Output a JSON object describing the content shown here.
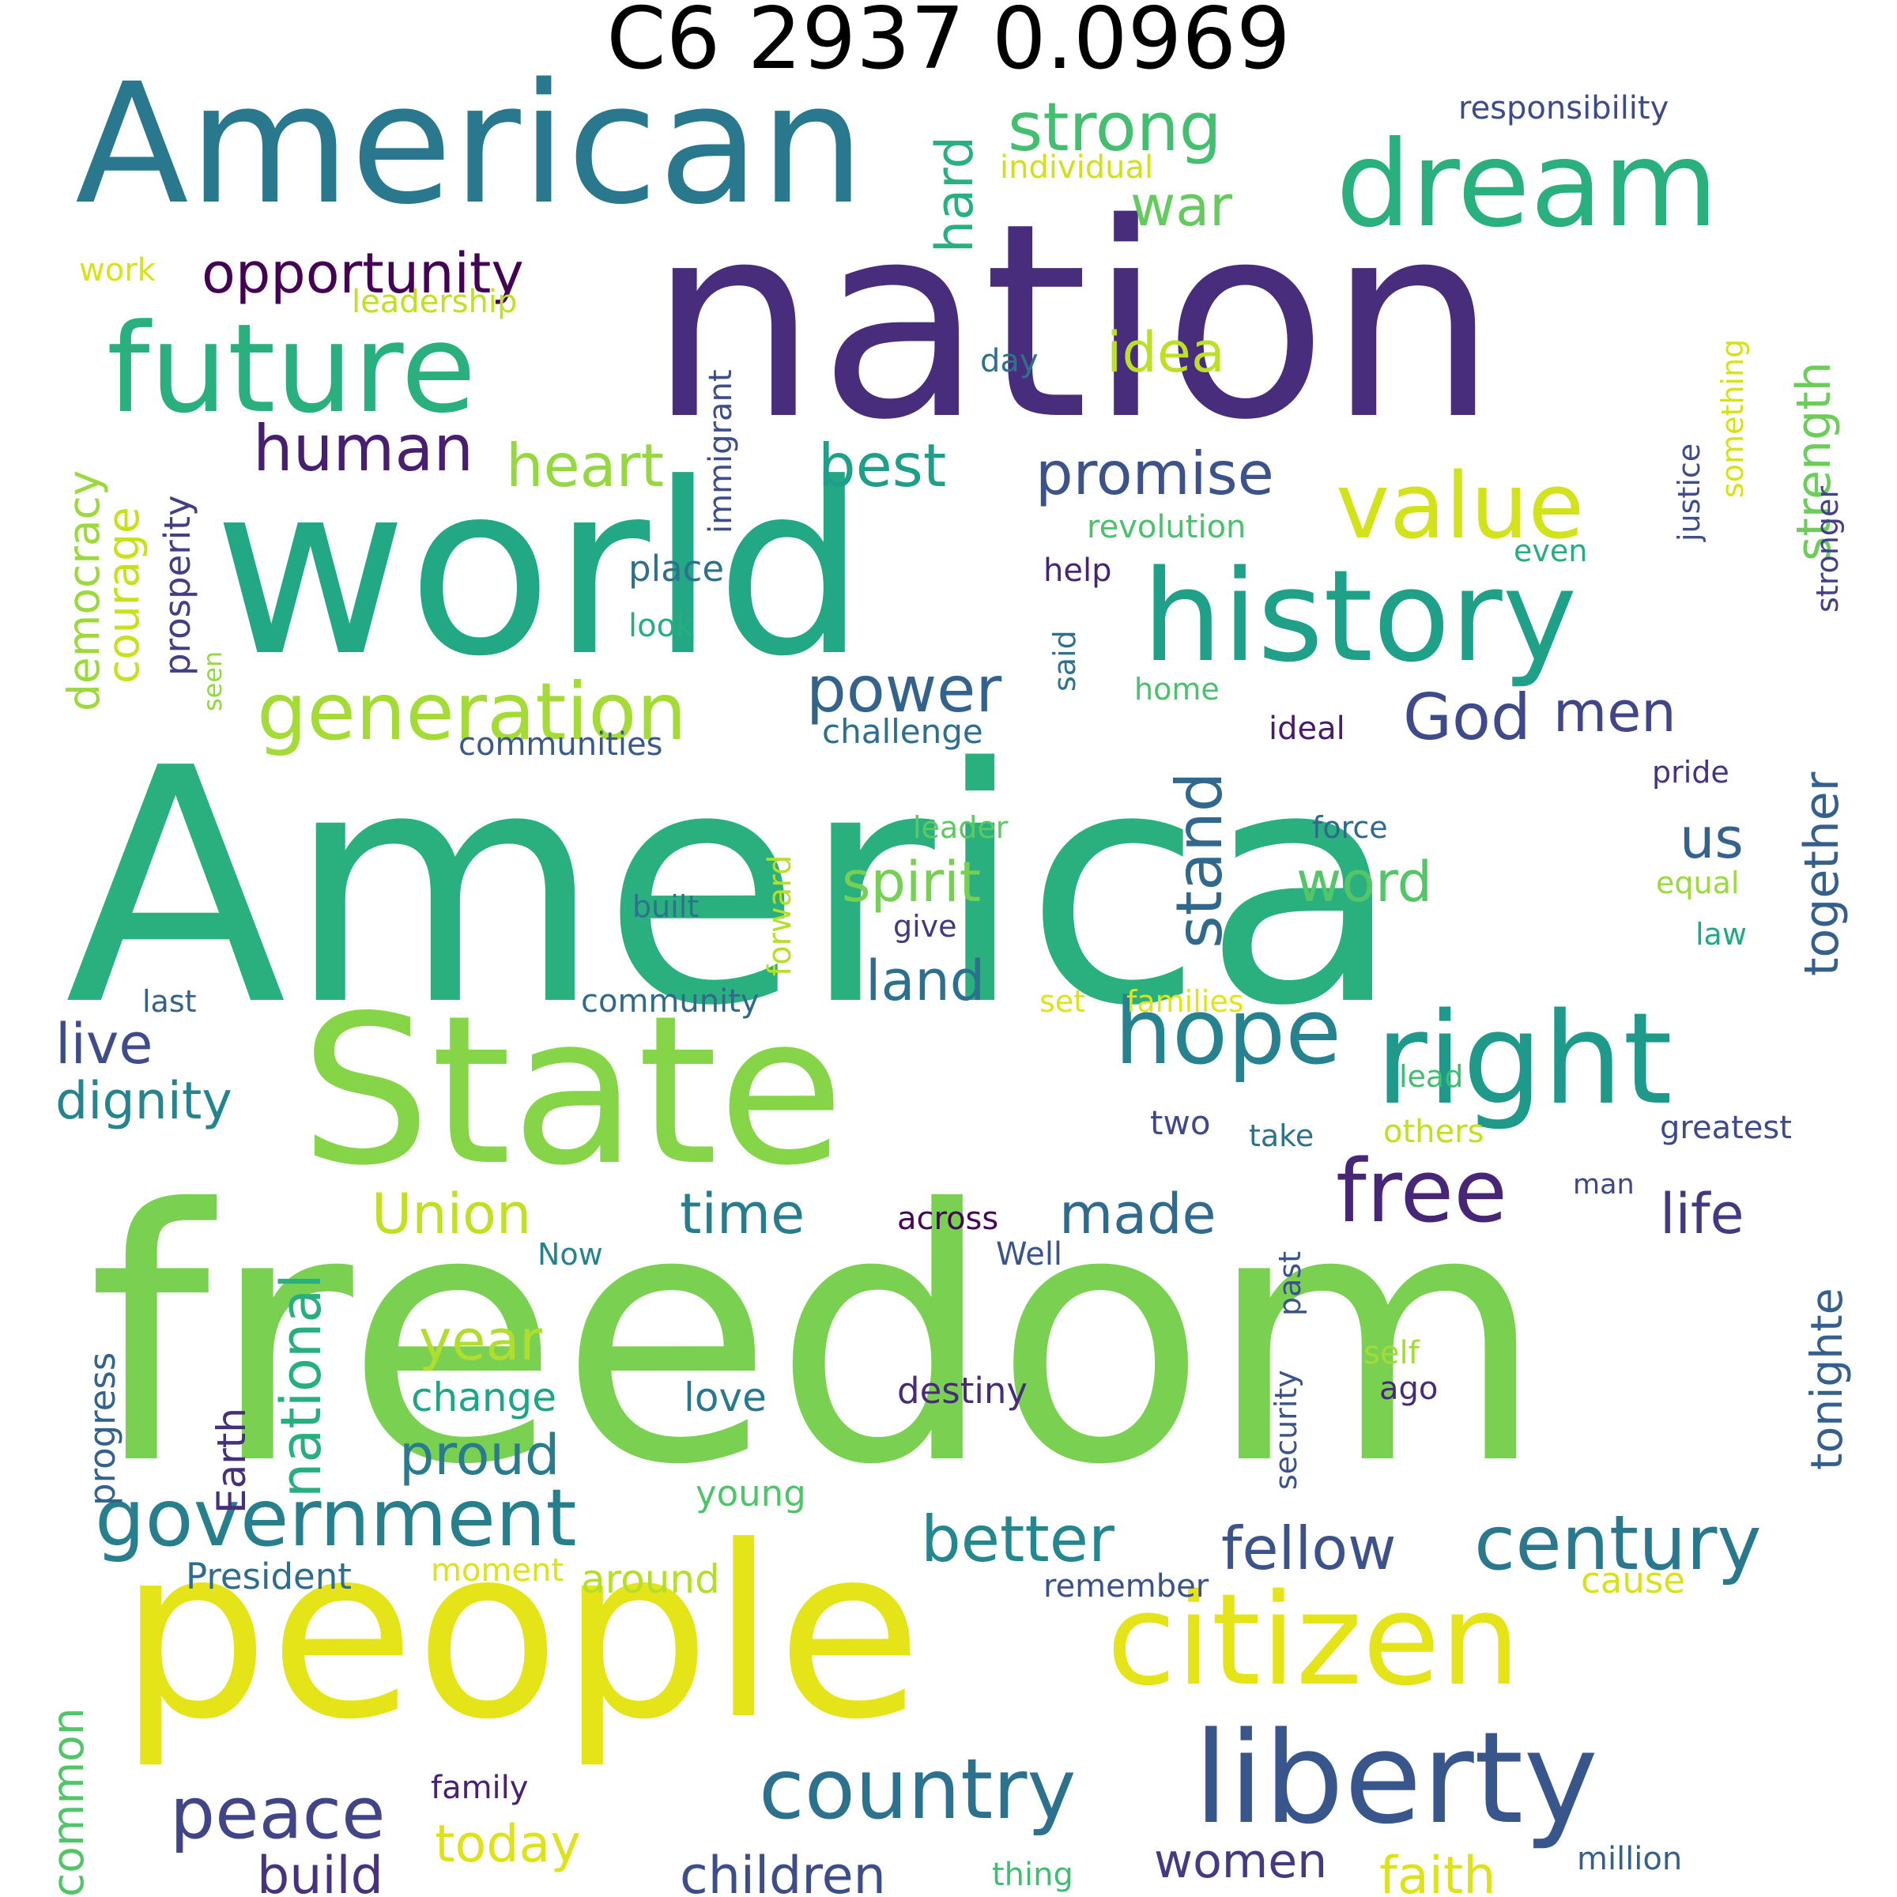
{
  "title": "C6 2937 0.0969",
  "words": [
    {
      "text": "freedom",
      "color": "#7ad151"
    },
    {
      "text": "America",
      "color": "#2ab07f"
    },
    {
      "text": "people",
      "color": "#e5e419"
    },
    {
      "text": "nation",
      "color": "#472d7b"
    },
    {
      "text": "world",
      "color": "#22a884"
    },
    {
      "text": "State",
      "color": "#86d549"
    },
    {
      "text": "American",
      "color": "#2a788e"
    },
    {
      "text": "history",
      "color": "#1fa088"
    },
    {
      "text": "dream",
      "color": "#2ab07f"
    },
    {
      "text": "future",
      "color": "#2ab07f"
    },
    {
      "text": "right",
      "color": "#1f9a8a"
    },
    {
      "text": "liberty",
      "color": "#39568c"
    },
    {
      "text": "citizen",
      "color": "#e5e419"
    },
    {
      "text": "value",
      "color": "#d2e21b"
    },
    {
      "text": "hope",
      "color": "#26828e"
    },
    {
      "text": "generation",
      "color": "#a5db36"
    },
    {
      "text": "government",
      "color": "#277f8e"
    },
    {
      "text": "country",
      "color": "#2c728e"
    },
    {
      "text": "century",
      "color": "#2a788e"
    },
    {
      "text": "free",
      "color": "#482677"
    },
    {
      "text": "strong",
      "color": "#44bf70"
    },
    {
      "text": "opportunity",
      "color": "#440154"
    },
    {
      "text": "human",
      "color": "#481f70"
    },
    {
      "text": "heart",
      "color": "#95d840"
    },
    {
      "text": "promise",
      "color": "#3b528b"
    },
    {
      "text": "best",
      "color": "#1f9e89"
    },
    {
      "text": "power",
      "color": "#33638d"
    },
    {
      "text": "spirit",
      "color": "#75d054"
    },
    {
      "text": "stand",
      "color": "#31688e"
    },
    {
      "text": "God",
      "color": "#3e4a89"
    },
    {
      "text": "men",
      "color": "#404688"
    },
    {
      "text": "word",
      "color": "#54c568"
    },
    {
      "text": "land",
      "color": "#2d708e"
    },
    {
      "text": "us",
      "color": "#34618d"
    },
    {
      "text": "together",
      "color": "#355f8d"
    },
    {
      "text": "idea",
      "color": "#bddf26"
    },
    {
      "text": "war",
      "color": "#65cb5e"
    },
    {
      "text": "hard",
      "color": "#2ab07f"
    },
    {
      "text": "strength",
      "color": "#6ccd5a"
    },
    {
      "text": "live",
      "color": "#3e4c8a"
    },
    {
      "text": "dignity",
      "color": "#25858e"
    },
    {
      "text": "Union",
      "color": "#c2df23"
    },
    {
      "text": "time",
      "color": "#287c8e"
    },
    {
      "text": "made",
      "color": "#2f6b8e"
    },
    {
      "text": "life",
      "color": "#453781"
    },
    {
      "text": "year",
      "color": "#b0dd2f"
    },
    {
      "text": "proud",
      "color": "#297b8e"
    },
    {
      "text": "national",
      "color": "#29af7f"
    },
    {
      "text": "better",
      "color": "#24868e"
    },
    {
      "text": "fellow",
      "color": "#3b528b"
    },
    {
      "text": "peace",
      "color": "#414487"
    },
    {
      "text": "build",
      "color": "#46327e"
    },
    {
      "text": "today",
      "color": "#dde318"
    },
    {
      "text": "children",
      "color": "#3d4d8a"
    },
    {
      "text": "women",
      "color": "#443983"
    },
    {
      "text": "faith",
      "color": "#dde318"
    },
    {
      "text": "common",
      "color": "#52c569"
    },
    {
      "text": "democracy",
      "color": "#9bd93c"
    },
    {
      "text": "courage",
      "color": "#c8e020"
    },
    {
      "text": "prosperity",
      "color": "#433e85"
    },
    {
      "text": "immigrant",
      "color": "#3d4e8a"
    },
    {
      "text": "tonight",
      "color": "#35b779"
    },
    {
      "text": "tonighte",
      "color": "#35608d"
    },
    {
      "text": "progress",
      "color": "#33638d"
    },
    {
      "text": "Earth",
      "color": "#46307e"
    },
    {
      "text": "change",
      "color": "#20a486"
    },
    {
      "text": "love",
      "color": "#2a788e"
    },
    {
      "text": "destiny",
      "color": "#472c7a"
    },
    {
      "text": "young",
      "color": "#50c46a"
    },
    {
      "text": "President",
      "color": "#2e6d8e"
    },
    {
      "text": "moment",
      "color": "#dde318"
    },
    {
      "text": "around",
      "color": "#b5de2b"
    },
    {
      "text": "remember",
      "color": "#3b528b"
    },
    {
      "text": "cause",
      "color": "#d8e219"
    },
    {
      "text": "family",
      "color": "#482173"
    },
    {
      "text": "thing",
      "color": "#40bd72"
    },
    {
      "text": "million",
      "color": "#355f8d"
    },
    {
      "text": "responsibility",
      "color": "#3e4a89"
    },
    {
      "text": "individual",
      "color": "#d0e11c"
    },
    {
      "text": "work",
      "color": "#d8e219"
    },
    {
      "text": "leadership",
      "color": "#c0df25"
    },
    {
      "text": "day",
      "color": "#2d718e"
    },
    {
      "text": "something",
      "color": "#d5e21a"
    },
    {
      "text": "justice",
      "color": "#3d4e8a"
    },
    {
      "text": "stronger",
      "color": "#424086"
    },
    {
      "text": "revolution",
      "color": "#4ac16d"
    },
    {
      "text": "even",
      "color": "#27ad81"
    },
    {
      "text": "help",
      "color": "#482475"
    },
    {
      "text": "place",
      "color": "#2d718e"
    },
    {
      "text": "look",
      "color": "#27ad81"
    },
    {
      "text": "said",
      "color": "#2c728e"
    },
    {
      "text": "seen",
      "color": "#93d741"
    },
    {
      "text": "home",
      "color": "#4ac16d"
    },
    {
      "text": "communities",
      "color": "#38598c"
    },
    {
      "text": "challenge",
      "color": "#2e6e8e"
    },
    {
      "text": "ideal",
      "color": "#481b6d"
    },
    {
      "text": "pride",
      "color": "#463480"
    },
    {
      "text": "leader",
      "color": "#5ec962"
    },
    {
      "text": "force",
      "color": "#31688e"
    },
    {
      "text": "equal",
      "color": "#9bd93c"
    },
    {
      "text": "forward",
      "color": "#b8de29"
    },
    {
      "text": "built",
      "color": "#2c738e"
    },
    {
      "text": "give",
      "color": "#453882"
    },
    {
      "text": "law",
      "color": "#22a884"
    },
    {
      "text": "last",
      "color": "#33638d"
    },
    {
      "text": "community",
      "color": "#30698e"
    },
    {
      "text": "set",
      "color": "#dde318"
    },
    {
      "text": "families",
      "color": "#e2e418"
    },
    {
      "text": "lead",
      "color": "#40bd72"
    },
    {
      "text": "two",
      "color": "#3f4889"
    },
    {
      "text": "take",
      "color": "#2c728e"
    },
    {
      "text": "others",
      "color": "#c2df23"
    },
    {
      "text": "greatest",
      "color": "#3e4a89"
    },
    {
      "text": "across",
      "color": "#450559"
    },
    {
      "text": "man",
      "color": "#3f4788"
    },
    {
      "text": "Now",
      "color": "#25838e"
    },
    {
      "text": "Well",
      "color": "#3a548c"
    },
    {
      "text": "security",
      "color": "#3b528b"
    },
    {
      "text": "past",
      "color": "#3b528b"
    },
    {
      "text": "self",
      "color": "#a5db36"
    },
    {
      "text": "ago",
      "color": "#472a7a"
    }
  ]
}
